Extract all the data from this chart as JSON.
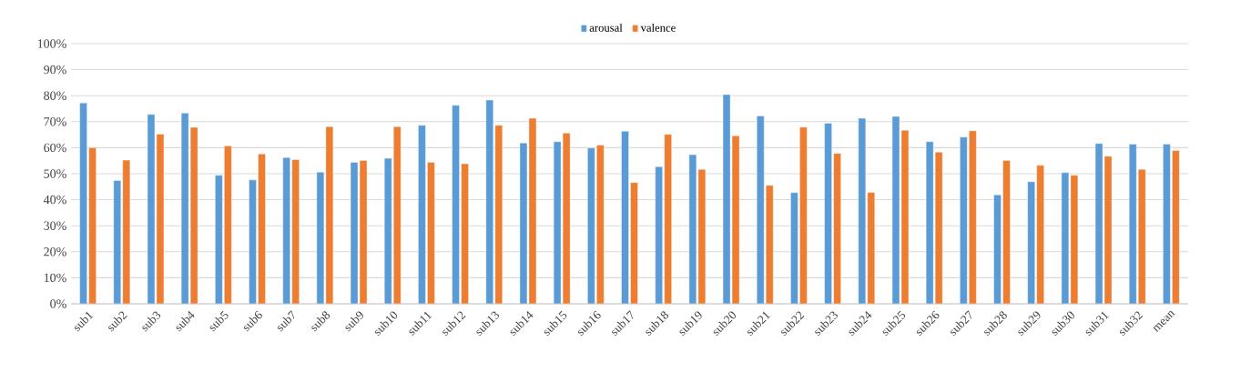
{
  "chart_data": {
    "type": "bar",
    "categories": [
      "sub1",
      "sub2",
      "sub3",
      "sub4",
      "sub5",
      "sub6",
      "sub7",
      "sub8",
      "sub9",
      "sub10",
      "sub11",
      "sub12",
      "sub13",
      "sub14",
      "sub15",
      "sub16",
      "sub17",
      "sub18",
      "sub19",
      "sub20",
      "sub21",
      "sub22",
      "sub23",
      "sub24",
      "sub25",
      "sub26",
      "sub27",
      "sub28",
      "sub29",
      "sub30",
      "sub31",
      "sub32",
      "mean"
    ],
    "series": [
      {
        "name": "arousal",
        "color": "#5b9bd5",
        "values": [
          77.2,
          47.4,
          72.8,
          73.3,
          49.4,
          47.6,
          56.2,
          50.6,
          54.4,
          55.9,
          68.6,
          76.3,
          78.3,
          61.8,
          62.3,
          59.9,
          66.3,
          52.7,
          57.3,
          80.4,
          72.2,
          42.7,
          69.4,
          71.3,
          72.0,
          62.3,
          64.1,
          41.9,
          46.9,
          50.4,
          61.6,
          61.4,
          61.4
        ]
      },
      {
        "name": "valence",
        "color": "#ed7d31",
        "values": [
          60.0,
          55.2,
          65.2,
          67.8,
          60.7,
          57.6,
          55.4,
          68.1,
          55.1,
          68.1,
          54.4,
          53.8,
          68.6,
          71.3,
          65.6,
          61.0,
          46.6,
          65.1,
          51.7,
          64.6,
          45.5,
          67.9,
          57.8,
          42.8,
          66.7,
          58.3,
          66.5,
          55.1,
          53.2,
          49.4,
          56.7,
          51.7,
          58.9
        ]
      }
    ],
    "ylim": [
      0,
      100
    ],
    "yticks": [
      {
        "value": 0,
        "label": "0%"
      },
      {
        "value": 10,
        "label": "10%"
      },
      {
        "value": 20,
        "label": "20%"
      },
      {
        "value": 30,
        "label": "30%"
      },
      {
        "value": 40,
        "label": "40%"
      },
      {
        "value": 50,
        "label": "50%"
      },
      {
        "value": 60,
        "label": "60%"
      },
      {
        "value": 70,
        "label": "70%"
      },
      {
        "value": 80,
        "label": "80%"
      },
      {
        "value": 90,
        "label": "90%"
      },
      {
        "value": 100,
        "label": "100%"
      }
    ],
    "grid": "y",
    "legend": "top"
  }
}
